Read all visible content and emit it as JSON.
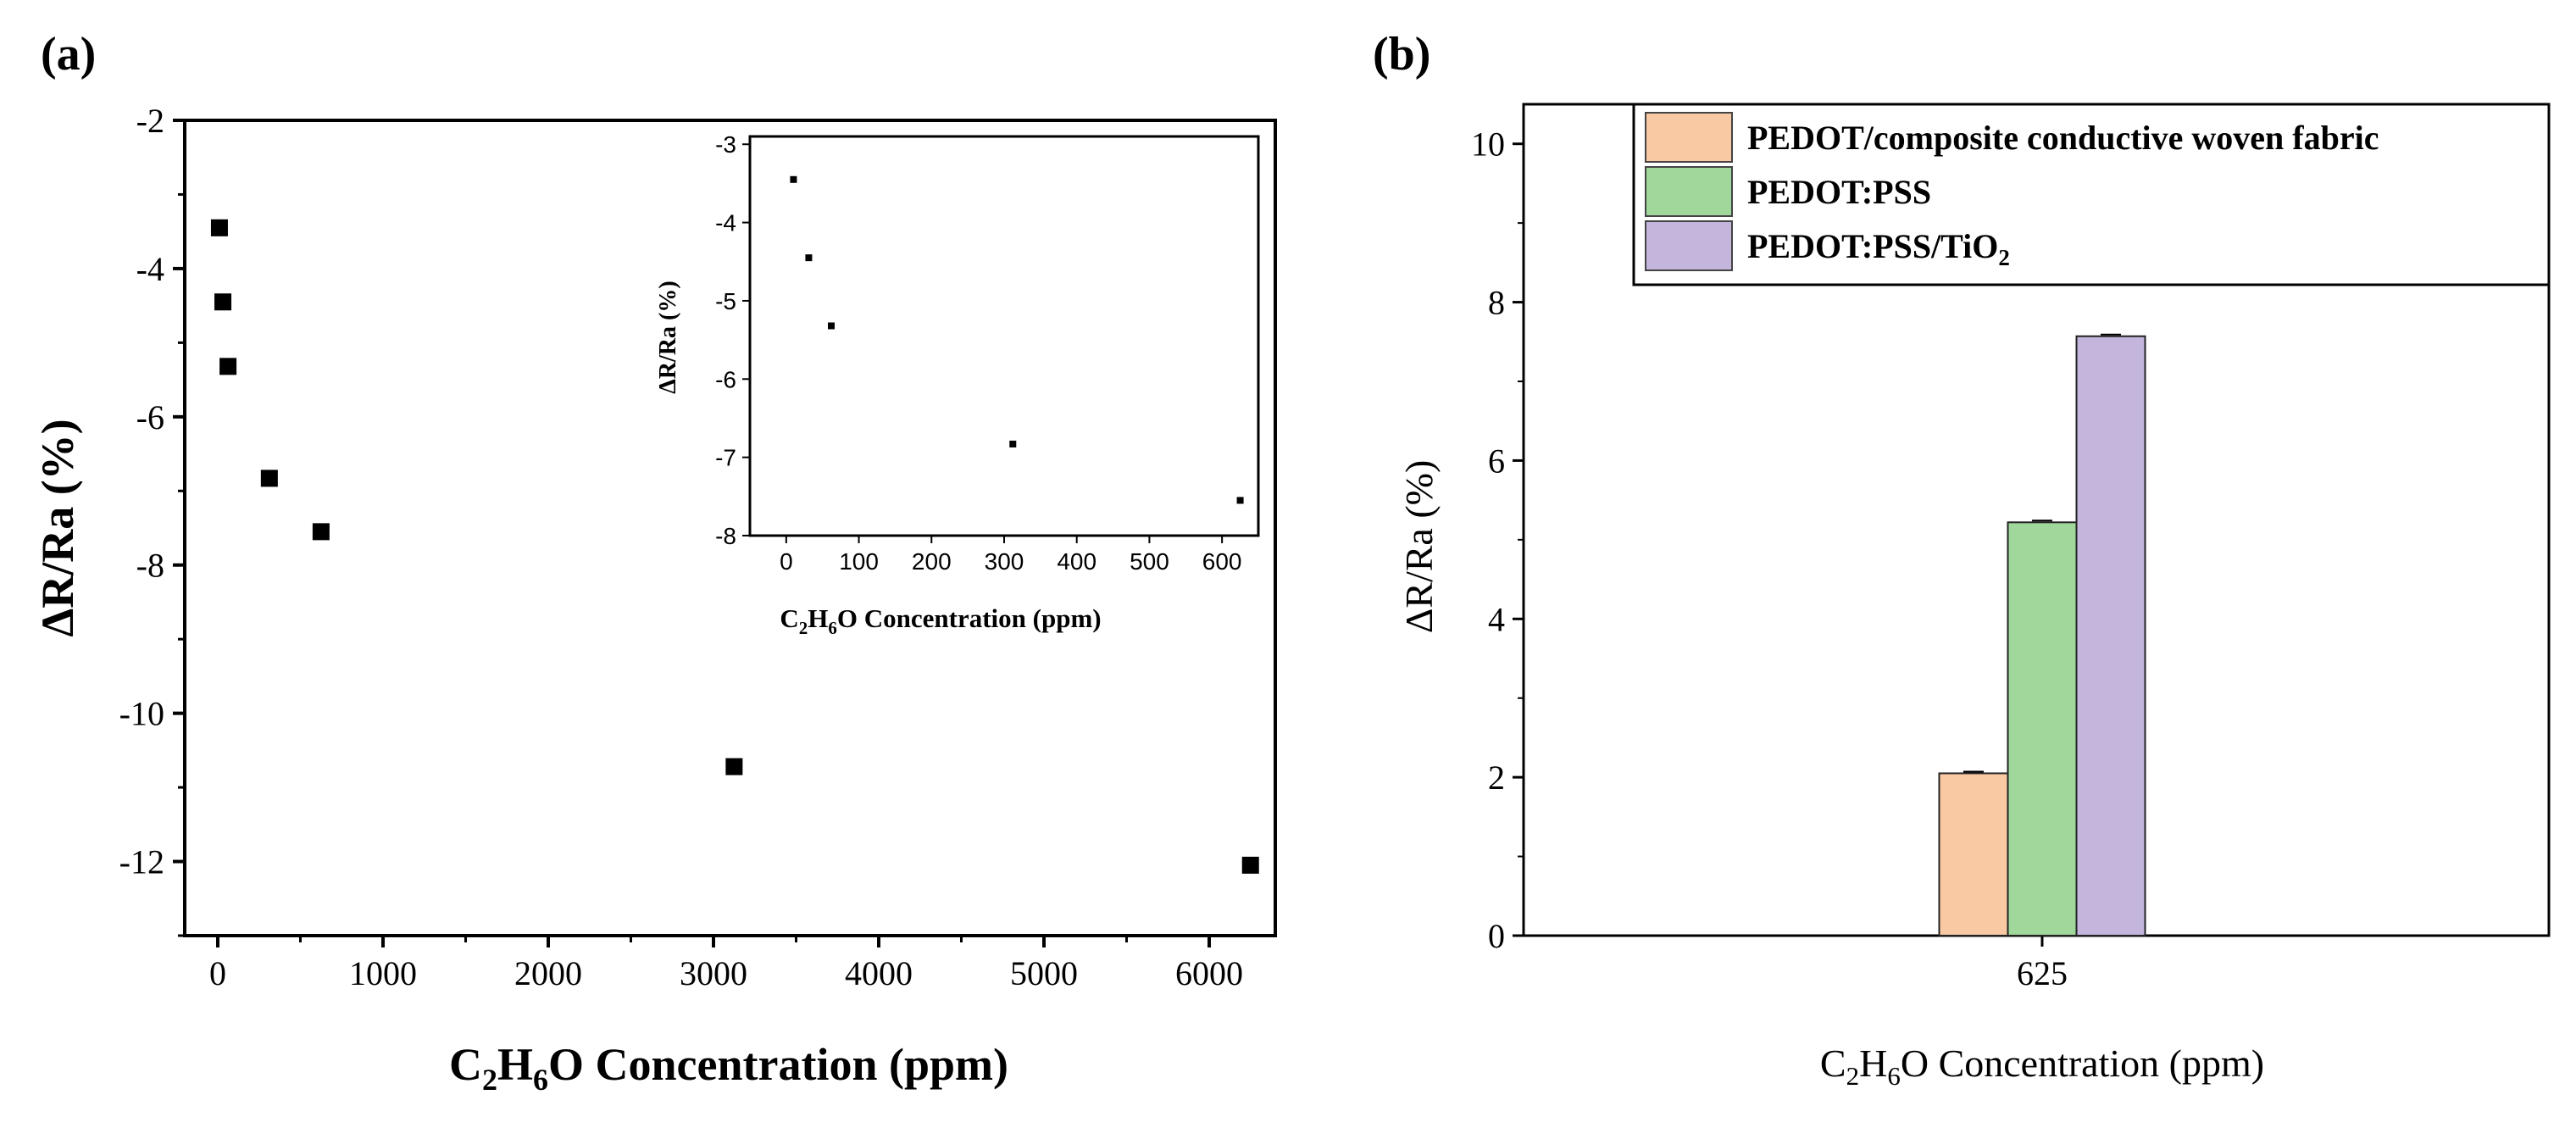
{
  "panel_labels": {
    "a": "(a)",
    "b": "(b)"
  },
  "chart_data": [
    {
      "id": "main-scatter",
      "type": "scatter",
      "title": "",
      "xlabel": {
        "prefix": "C",
        "s1": "2",
        "mid": "H",
        "s2": "6",
        "suffix": "O Concentration (ppm)"
      },
      "ylabel": "ΔR/Ra (%)",
      "xlim": [
        -200,
        6400
      ],
      "ylim": [
        -13,
        -2
      ],
      "xticks": [
        0,
        1000,
        2000,
        3000,
        4000,
        5000,
        6000
      ],
      "yticks": [
        -2,
        -4,
        -6,
        -8,
        -10,
        -12
      ],
      "points": [
        {
          "x": 10,
          "y": -3.45
        },
        {
          "x": 31,
          "y": -4.45
        },
        {
          "x": 62,
          "y": -5.32
        },
        {
          "x": 312,
          "y": -6.83
        },
        {
          "x": 625,
          "y": -7.55
        },
        {
          "x": 3125,
          "y": -10.72
        },
        {
          "x": 6250,
          "y": -12.05
        }
      ]
    },
    {
      "id": "inset-scatter",
      "type": "scatter",
      "title": "",
      "xlabel": {
        "prefix": "C",
        "s1": "2",
        "mid": "H",
        "s2": "6",
        "suffix": "O Concentration (ppm)"
      },
      "ylabel": "ΔR/Ra (%)",
      "xlim": [
        -50,
        650
      ],
      "ylim": [
        -8,
        -2.9
      ],
      "xticks": [
        0,
        100,
        200,
        300,
        400,
        500,
        600
      ],
      "yticks": [
        -3,
        -4,
        -5,
        -6,
        -7,
        -8
      ],
      "points": [
        {
          "x": 10,
          "y": -3.45
        },
        {
          "x": 31,
          "y": -4.45
        },
        {
          "x": 62,
          "y": -5.32
        },
        {
          "x": 312,
          "y": -6.83
        },
        {
          "x": 625,
          "y": -7.55
        }
      ]
    },
    {
      "id": "bar-chart",
      "type": "bar",
      "title": "",
      "categories": [
        "625"
      ],
      "xlabel": {
        "prefix": "C",
        "s1": "2",
        "mid": "H",
        "s2": "6",
        "suffix": "O Concentration (ppm)"
      },
      "ylabel": "ΔR/Ra (%)",
      "ylim": [
        0,
        10.5
      ],
      "yticks": [
        0,
        2,
        4,
        6,
        8,
        10
      ],
      "legend_position": "top-right",
      "series": [
        {
          "name": "PEDOT/composite conductive woven fabric",
          "values": [
            2.05
          ],
          "color": "#f9c9a4"
        },
        {
          "name": "PEDOT:PSS",
          "values": [
            5.22
          ],
          "color": "#9fd89a"
        },
        {
          "name": "PEDOT:PSS/TiO₂",
          "name_base": "PEDOT:PSS/TiO",
          "name_sub": "2",
          "values": [
            7.57
          ],
          "color": "#c3b5dc"
        }
      ]
    }
  ]
}
